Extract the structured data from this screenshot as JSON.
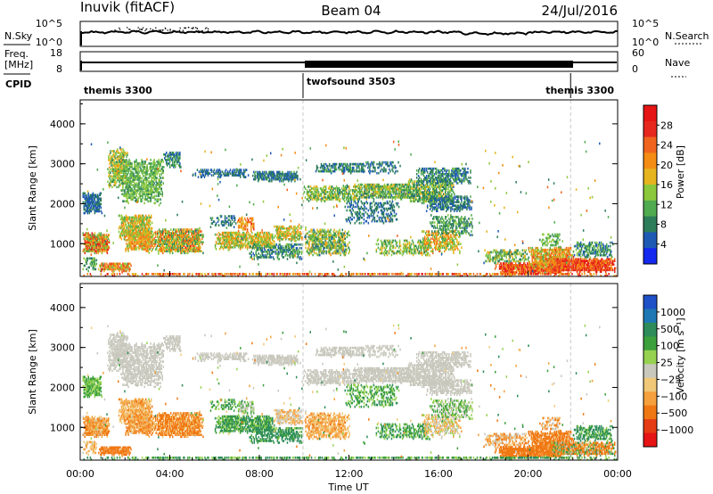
{
  "header": {
    "station": "Inuvik (fitACF)",
    "beam": "Beam 04",
    "date": "24/Jul/2016"
  },
  "top_panels": {
    "nsky_label": "N.Sky",
    "nsky_ticks": [
      "10^5",
      "10^0"
    ],
    "nsearch_label": "N.Search",
    "nsearch_ticks": [
      "10^5",
      "10^0"
    ],
    "freq_label": "Freq.",
    "freq_unit": "[MHz]",
    "freq_ticks": [
      "18",
      "8"
    ],
    "nave_label": "Nave",
    "nave_ticks": [
      "60",
      "0"
    ],
    "cpid_label": "CPID"
  },
  "chart_data": [
    {
      "type": "heatmap",
      "name": "power",
      "ylabel": "Slant Range [km]",
      "xlabel": "",
      "xlim": [
        0,
        24
      ],
      "ylim": [
        180,
        4600
      ],
      "yticks": [
        "1000",
        "2000",
        "3000",
        "4000"
      ],
      "colorbar_label": "Power [dB]",
      "colorbar_ticks": [
        "4",
        "8",
        "12",
        "16",
        "20",
        "24",
        "28"
      ],
      "colorbar_colors": [
        "#1428f0",
        "#1e5ab4",
        "#2d7d5a",
        "#50aa50",
        "#8cc83c",
        "#e6b41e",
        "#f58c14",
        "#f0641e",
        "#e6281e",
        "#e61414"
      ]
    },
    {
      "type": "heatmap",
      "name": "velocity",
      "ylabel": "Slant Range [km]",
      "xlabel": "Time UT",
      "xlim": [
        0,
        24
      ],
      "ylim": [
        180,
        4600
      ],
      "yticks": [
        "1000",
        "2000",
        "3000",
        "4000"
      ],
      "xticks": [
        "00:00",
        "04:00",
        "08:00",
        "12:00",
        "16:00",
        "20:00",
        "00:00"
      ],
      "colorbar_label": "Velocity [m s⁻¹]",
      "colorbar_ticks": [
        "1000",
        "500",
        "100",
        "25",
        "−25",
        "−100",
        "−500",
        "−1000"
      ],
      "colorbar_colors": [
        "#1e50c8",
        "#1e78b4",
        "#2d8c5a",
        "#3ca03c",
        "#96d250",
        "#c8c8bd",
        "#f0c878",
        "#f5a03c",
        "#f07814",
        "#e63c14",
        "#e61414"
      ]
    }
  ],
  "cpid_segments": [
    {
      "label": "themis 3300",
      "start": 0.0,
      "end": 9.95
    },
    {
      "label": "twofsound 3503",
      "start": 9.95,
      "end": 21.9
    },
    {
      "label": "themis 3300",
      "start": 21.9,
      "end": 24.0
    }
  ]
}
